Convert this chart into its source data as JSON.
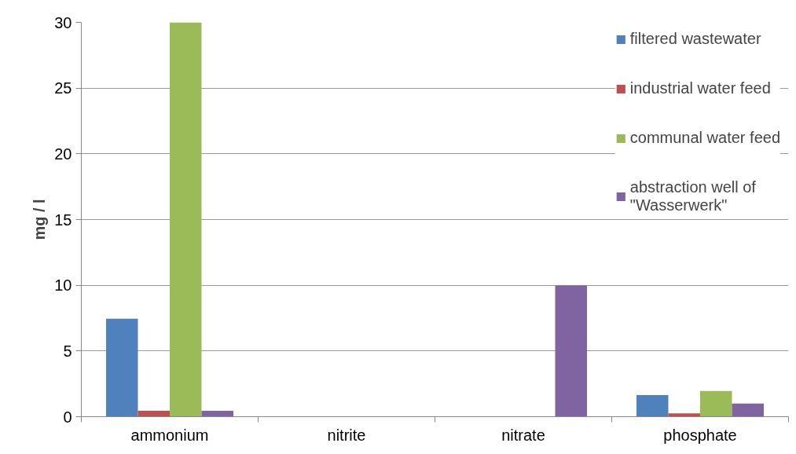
{
  "chart_data": {
    "type": "bar",
    "ylabel": "mg / l",
    "categories": [
      "ammonium",
      "nitrite",
      "nitrate",
      "phosphate"
    ],
    "series": [
      {
        "name": "filtered wastewater",
        "color": "#4f81bd",
        "values": [
          7.45,
          0,
          0,
          1.65
        ]
      },
      {
        "name": "industrial water feed",
        "color": "#c0504d",
        "values": [
          0.45,
          0,
          0,
          0.25
        ]
      },
      {
        "name": "communal water feed",
        "color": "#9bbb59",
        "values": [
          30,
          0,
          0,
          1.95
        ]
      },
      {
        "name": "abstraction well of\n\"Wasserwerk\"",
        "color": "#8064a2",
        "values": [
          0.45,
          0,
          10,
          1.0
        ]
      }
    ],
    "ylim": [
      0,
      30
    ],
    "yticks": [
      0,
      5,
      10,
      15,
      20,
      25,
      30
    ],
    "grid": "y",
    "legend": "right"
  }
}
